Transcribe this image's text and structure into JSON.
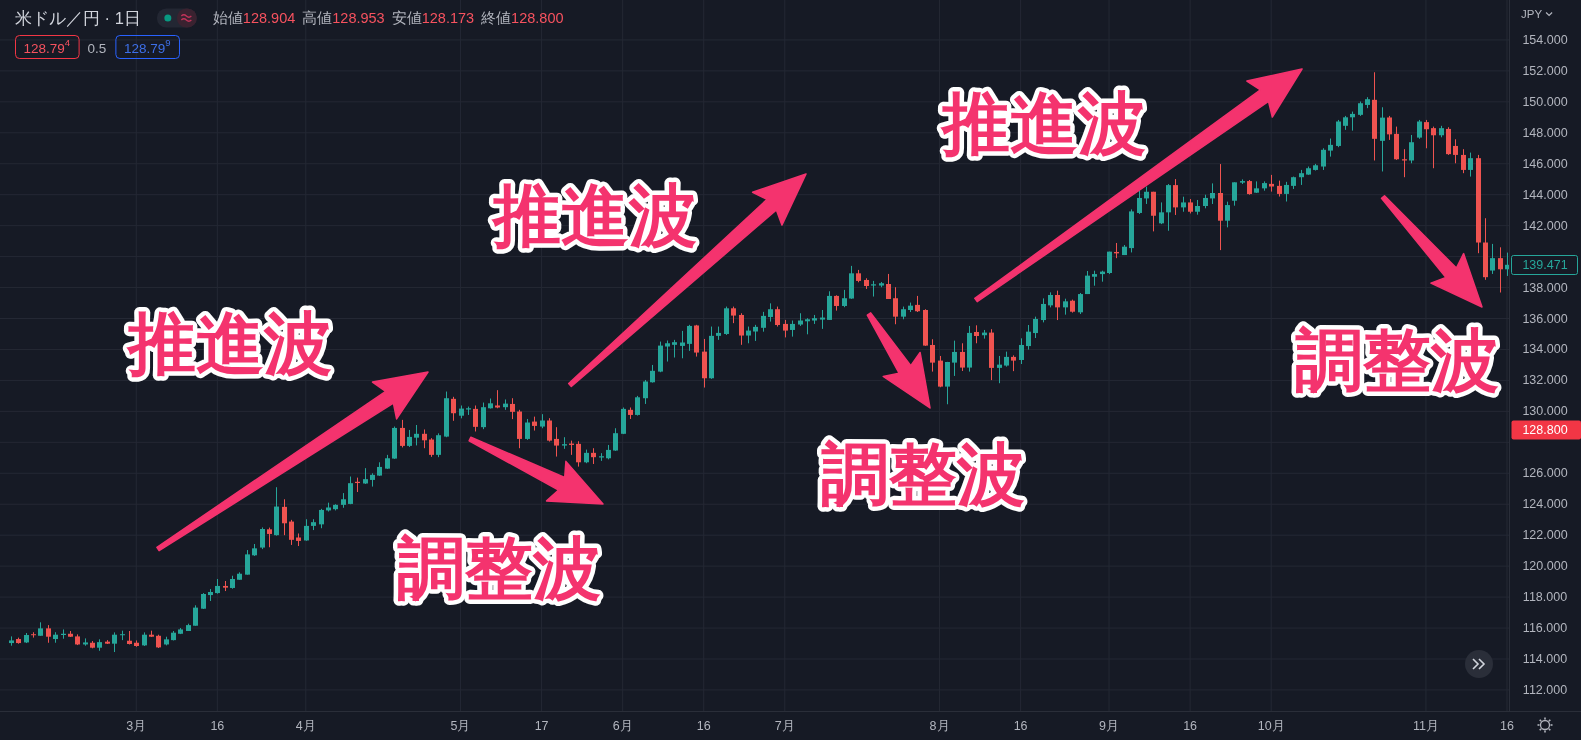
{
  "chart_data": {
    "type": "candlestick",
    "title": "米ドル／円 · 1日",
    "ylabel": "JPY",
    "categories": [
      null,
      null,
      null,
      null,
      null,
      null,
      null,
      null,
      null,
      null,
      null,
      null,
      null,
      null,
      null,
      null,
      null,
      "3月",
      null,
      null,
      null,
      null,
      null,
      null,
      null,
      null,
      null,
      null,
      "16",
      null,
      null,
      null,
      null,
      null,
      null,
      null,
      null,
      null,
      null,
      null,
      "4月",
      null,
      null,
      null,
      null,
      null,
      null,
      null,
      null,
      null,
      null,
      null,
      null,
      null,
      null,
      null,
      null,
      null,
      null,
      null,
      null,
      "5月",
      null,
      null,
      null,
      null,
      null,
      null,
      null,
      null,
      null,
      null,
      "17",
      null,
      null,
      null,
      null,
      null,
      null,
      null,
      null,
      null,
      null,
      "6月",
      null,
      null,
      null,
      null,
      null,
      null,
      null,
      null,
      null,
      null,
      "16",
      null,
      null,
      null,
      null,
      null,
      null,
      null,
      null,
      null,
      null,
      "7月",
      null,
      null,
      null,
      null,
      null,
      null,
      null,
      null,
      null,
      null,
      null,
      null,
      null,
      null,
      null,
      null,
      null,
      null,
      null,
      null,
      "8月",
      null,
      null,
      null,
      null,
      null,
      null,
      null,
      null,
      null,
      null,
      "16",
      null,
      null,
      null,
      null,
      null,
      null,
      null,
      null,
      null,
      null,
      null,
      "9月",
      null,
      null,
      null,
      null,
      null,
      null,
      null,
      null,
      null,
      null,
      "16",
      null,
      null,
      null,
      null,
      null,
      null,
      null,
      null,
      null,
      null,
      "10月",
      null,
      null,
      null,
      null,
      null,
      null,
      null,
      null,
      null,
      null,
      null,
      null,
      null,
      null,
      null,
      null,
      null,
      null,
      null,
      null,
      "11月",
      null,
      null,
      null,
      null,
      null,
      null,
      null,
      null,
      null,
      null,
      "16"
    ],
    "ohlc": [
      [
        115.03,
        115.46,
        114.86,
        115.2
      ],
      [
        115.29,
        115.38,
        114.99,
        115.03
      ],
      [
        115.07,
        115.68,
        115.03,
        115.55
      ],
      [
        115.6,
        115.73,
        115.38,
        115.55
      ],
      [
        115.5,
        116.37,
        115.5,
        115.98
      ],
      [
        115.98,
        116.19,
        115.05,
        115.44
      ],
      [
        115.29,
        115.73,
        115.05,
        115.57
      ],
      [
        115.55,
        115.91,
        115.31,
        115.63
      ],
      [
        115.63,
        115.81,
        115.42,
        115.44
      ],
      [
        115.46,
        115.59,
        114.9,
        114.94
      ],
      [
        114.94,
        115.33,
        114.86,
        115.07
      ],
      [
        115.05,
        115.16,
        114.69,
        114.73
      ],
      [
        114.73,
        115.27,
        114.53,
        115.09
      ],
      [
        115.12,
        115.22,
        114.97,
        114.99
      ],
      [
        114.99,
        115.72,
        114.45,
        115.57
      ],
      [
        115.55,
        115.83,
        115.22,
        115.6
      ],
      [
        115.18,
        115.81,
        114.94,
        114.97
      ],
      [
        115.05,
        115.2,
        114.79,
        114.84
      ],
      [
        114.88,
        115.72,
        114.84,
        115.57
      ],
      [
        115.57,
        115.83,
        115.42,
        115.44
      ],
      [
        115.5,
        115.57,
        114.71,
        114.75
      ],
      [
        114.94,
        115.44,
        114.88,
        115.27
      ],
      [
        115.22,
        115.81,
        115.2,
        115.7
      ],
      [
        115.63,
        116.0,
        115.61,
        115.91
      ],
      [
        115.81,
        116.28,
        115.81,
        116.19
      ],
      [
        116.15,
        117.47,
        116.15,
        117.32
      ],
      [
        117.25,
        118.26,
        117.23,
        118.2
      ],
      [
        118.13,
        118.52,
        117.75,
        118.33
      ],
      [
        118.26,
        119.17,
        118.22,
        118.72
      ],
      [
        118.72,
        119.04,
        118.39,
        118.61
      ],
      [
        118.59,
        119.38,
        118.54,
        119.17
      ],
      [
        119.12,
        119.6,
        119.12,
        119.51
      ],
      [
        119.45,
        121.04,
        119.45,
        120.76
      ],
      [
        120.7,
        121.43,
        120.66,
        121.15
      ],
      [
        121.2,
        122.5,
        121.1,
        122.4
      ],
      [
        122.38,
        122.49,
        121.22,
        122.08
      ],
      [
        122.0,
        125.1,
        121.97,
        123.85
      ],
      [
        123.83,
        124.32,
        122.0,
        122.77
      ],
      [
        122.88,
        122.99,
        121.37,
        121.7
      ],
      [
        121.85,
        122.11,
        121.3,
        121.63
      ],
      [
        121.66,
        123.03,
        121.64,
        122.6
      ],
      [
        122.6,
        123.03,
        122.33,
        122.84
      ],
      [
        122.7,
        123.7,
        122.45,
        123.63
      ],
      [
        123.6,
        124.1,
        123.53,
        123.79
      ],
      [
        123.68,
        124.0,
        123.6,
        123.96
      ],
      [
        123.96,
        124.72,
        123.77,
        124.32
      ],
      [
        124.02,
        125.79,
        124.0,
        125.36
      ],
      [
        125.45,
        125.72,
        124.79,
        125.37
      ],
      [
        125.34,
        126.33,
        125.31,
        125.62
      ],
      [
        125.57,
        126.0,
        125.14,
        125.9
      ],
      [
        125.85,
        126.71,
        125.83,
        126.41
      ],
      [
        126.3,
        127.19,
        126.28,
        126.97
      ],
      [
        126.95,
        129.02,
        126.93,
        128.93
      ],
      [
        128.93,
        129.45,
        127.67,
        127.77
      ],
      [
        127.77,
        128.8,
        127.7,
        128.35
      ],
      [
        128.3,
        129.12,
        127.8,
        128.55
      ],
      [
        128.55,
        128.83,
        127.62,
        128.13
      ],
      [
        128.18,
        128.27,
        127.06,
        127.19
      ],
      [
        127.19,
        128.58,
        127.04,
        128.46
      ],
      [
        128.37,
        131.28,
        128.33,
        130.85
      ],
      [
        130.81,
        130.94,
        129.39,
        129.88
      ],
      [
        129.72,
        130.38,
        129.55,
        130.18
      ],
      [
        130.12,
        130.31,
        129.77,
        130.2
      ],
      [
        130.16,
        130.38,
        128.7,
        129.0
      ],
      [
        128.98,
        130.57,
        128.85,
        130.27
      ],
      [
        130.2,
        130.83,
        130.18,
        130.52
      ],
      [
        130.38,
        131.37,
        130.2,
        130.25
      ],
      [
        130.27,
        130.77,
        130.1,
        130.5
      ],
      [
        130.48,
        130.85,
        129.5,
        129.97
      ],
      [
        129.99,
        130.1,
        127.62,
        128.22
      ],
      [
        128.22,
        129.51,
        128.16,
        129.28
      ],
      [
        129.34,
        129.66,
        128.76,
        129.06
      ],
      [
        129.02,
        129.82,
        128.91,
        129.41
      ],
      [
        129.41,
        129.56,
        128.05,
        128.11
      ],
      [
        128.22,
        128.98,
        127.08,
        127.79
      ],
      [
        127.79,
        128.33,
        127.58,
        127.88
      ],
      [
        127.92,
        128.11,
        127.19,
        127.83
      ],
      [
        127.9,
        128.07,
        126.43,
        126.71
      ],
      [
        126.71,
        127.53,
        126.65,
        127.32
      ],
      [
        127.32,
        127.62,
        126.6,
        127.04
      ],
      [
        127.02,
        127.3,
        126.8,
        127.1
      ],
      [
        126.97,
        127.83,
        126.9,
        127.51
      ],
      [
        127.47,
        128.91,
        127.45,
        128.59
      ],
      [
        128.55,
        130.25,
        128.53,
        130.16
      ],
      [
        130.1,
        130.25,
        129.51,
        129.77
      ],
      [
        129.77,
        131.0,
        129.73,
        130.91
      ],
      [
        130.85,
        132.03,
        130.48,
        131.93
      ],
      [
        131.88,
        133.0,
        131.86,
        132.62
      ],
      [
        132.57,
        134.51,
        132.53,
        134.25
      ],
      [
        134.19,
        134.58,
        133.22,
        134.4
      ],
      [
        134.3,
        134.62,
        133.48,
        134.47
      ],
      [
        134.23,
        135.2,
        133.43,
        134.45
      ],
      [
        134.36,
        135.59,
        133.91,
        135.52
      ],
      [
        135.55,
        135.59,
        133.54,
        133.8
      ],
      [
        133.86,
        134.68,
        131.54,
        132.14
      ],
      [
        132.14,
        135.48,
        132.1,
        134.88
      ],
      [
        134.88,
        135.48,
        134.62,
        135.07
      ],
      [
        135.0,
        136.77,
        134.94,
        136.66
      ],
      [
        136.66,
        136.77,
        135.7,
        136.19
      ],
      [
        136.23,
        136.34,
        134.3,
        134.9
      ],
      [
        134.9,
        135.48,
        134.4,
        135.22
      ],
      [
        135.16,
        135.59,
        134.55,
        135.46
      ],
      [
        135.4,
        136.43,
        135.15,
        136.17
      ],
      [
        136.1,
        136.98,
        135.8,
        136.6
      ],
      [
        136.6,
        136.77,
        135.48,
        135.58
      ],
      [
        135.65,
        135.91,
        134.78,
        135.22
      ],
      [
        135.26,
        135.87,
        134.83,
        135.65
      ],
      [
        135.61,
        136.34,
        135.52,
        135.87
      ],
      [
        135.82,
        136.02,
        134.98,
        135.95
      ],
      [
        135.87,
        136.23,
        135.65,
        136.02
      ],
      [
        135.93,
        136.55,
        135.33,
        136.06
      ],
      [
        135.91,
        137.76,
        135.91,
        137.46
      ],
      [
        137.46,
        137.5,
        136.51,
        136.81
      ],
      [
        136.81,
        137.85,
        136.73,
        137.31
      ],
      [
        137.29,
        139.4,
        137.27,
        138.92
      ],
      [
        138.92,
        139.14,
        138.34,
        138.43
      ],
      [
        138.49,
        138.6,
        137.91,
        138.1
      ],
      [
        138.13,
        138.43,
        137.42,
        138.21
      ],
      [
        138.13,
        138.36,
        138.02,
        138.28
      ],
      [
        138.23,
        138.88,
        137.26,
        137.26
      ],
      [
        137.31,
        138.02,
        135.63,
        136.12
      ],
      [
        136.12,
        136.77,
        135.95,
        136.6
      ],
      [
        136.55,
        137.03,
        136.42,
        136.83
      ],
      [
        136.88,
        137.46,
        136.42,
        136.47
      ],
      [
        136.55,
        136.6,
        134.23,
        134.25
      ],
      [
        134.29,
        134.66,
        132.57,
        133.15
      ],
      [
        133.28,
        133.58,
        131.56,
        131.6
      ],
      [
        131.6,
        133.2,
        130.46,
        133.19
      ],
      [
        133.15,
        134.57,
        132.29,
        133.84
      ],
      [
        133.84,
        134.4,
        132.61,
        132.83
      ],
      [
        132.83,
        135.52,
        132.57,
        135.07
      ],
      [
        135.13,
        135.56,
        134.4,
        134.87
      ],
      [
        134.92,
        135.26,
        134.7,
        135.09
      ],
      [
        135.09,
        135.31,
        132.02,
        132.81
      ],
      [
        132.81,
        133.58,
        131.82,
        133.02
      ],
      [
        132.96,
        133.86,
        132.89,
        133.52
      ],
      [
        133.52,
        133.62,
        132.6,
        133.28
      ],
      [
        133.32,
        134.72,
        133.06,
        134.29
      ],
      [
        134.22,
        135.58,
        133.99,
        135.15
      ],
      [
        135.06,
        136.12,
        134.74,
        135.97
      ],
      [
        135.9,
        137.3,
        135.75,
        136.94
      ],
      [
        136.85,
        137.69,
        136.72,
        137.52
      ],
      [
        137.52,
        137.8,
        135.9,
        136.72
      ],
      [
        136.72,
        137.28,
        136.25,
        137.11
      ],
      [
        137.15,
        137.22,
        136.38,
        136.44
      ],
      [
        136.4,
        137.65,
        136.29,
        137.58
      ],
      [
        137.58,
        139.07,
        137.58,
        138.77
      ],
      [
        138.7,
        139.09,
        138.12,
        138.87
      ],
      [
        138.87,
        139.09,
        138.38,
        139.03
      ],
      [
        138.94,
        140.32,
        138.87,
        140.32
      ],
      [
        140.3,
        140.88,
        139.9,
        140.21
      ],
      [
        140.1,
        140.75,
        140.1,
        140.64
      ],
      [
        140.55,
        143.05,
        140.27,
        142.92
      ],
      [
        142.82,
        144.26,
        142.75,
        143.79
      ],
      [
        143.76,
        144.52,
        143.4,
        144.19
      ],
      [
        144.19,
        144.19,
        141.63,
        142.64
      ],
      [
        142.15,
        143.5,
        142.1,
        142.86
      ],
      [
        142.86,
        144.69,
        141.67,
        144.62
      ],
      [
        144.62,
        145.01,
        142.69,
        143.18
      ],
      [
        143.18,
        143.87,
        142.9,
        143.5
      ],
      [
        143.5,
        143.72,
        142.79,
        142.9
      ],
      [
        142.9,
        143.66,
        142.71,
        143.27
      ],
      [
        143.27,
        144.0,
        143.12,
        143.79
      ],
      [
        143.76,
        144.73,
        143.4,
        144.11
      ],
      [
        144.11,
        145.98,
        140.42,
        142.32
      ],
      [
        142.32,
        143.55,
        141.89,
        143.33
      ],
      [
        143.61,
        144.8,
        143.29,
        144.8
      ],
      [
        144.78,
        144.99,
        144.69,
        144.88
      ],
      [
        144.88,
        144.95,
        144.0,
        144.04
      ],
      [
        144.13,
        144.86,
        144.11,
        144.41
      ],
      [
        144.41,
        144.86,
        144.26,
        144.75
      ],
      [
        144.7,
        145.28,
        144.2,
        144.53
      ],
      [
        144.57,
        144.91,
        143.88,
        144.05
      ],
      [
        144.05,
        144.83,
        143.56,
        144.63
      ],
      [
        144.57,
        145.17,
        144.37,
        145.13
      ],
      [
        145.13,
        145.6,
        144.63,
        145.39
      ],
      [
        145.3,
        145.82,
        145.28,
        145.71
      ],
      [
        145.6,
        145.99,
        145.56,
        145.9
      ],
      [
        145.82,
        147.0,
        145.6,
        146.9
      ],
      [
        146.85,
        147.63,
        146.46,
        147.22
      ],
      [
        147.15,
        148.83,
        147.07,
        148.73
      ],
      [
        148.45,
        149.09,
        148.19,
        149.0
      ],
      [
        149.0,
        149.37,
        148.14,
        149.22
      ],
      [
        149.16,
        150.02,
        149.09,
        149.91
      ],
      [
        149.8,
        150.3,
        149.59,
        150.17
      ],
      [
        150.13,
        151.91,
        146.21,
        147.61
      ],
      [
        147.48,
        149.65,
        145.5,
        148.98
      ],
      [
        148.99,
        149.09,
        147.54,
        147.9
      ],
      [
        147.93,
        148.4,
        146.25,
        146.29
      ],
      [
        146.29,
        146.94,
        145.13,
        146.21
      ],
      [
        146.21,
        147.86,
        146.03,
        147.39
      ],
      [
        147.69,
        148.83,
        147.61,
        148.73
      ],
      [
        148.69,
        148.83,
        147.0,
        148.23
      ],
      [
        148.3,
        148.4,
        145.71,
        147.84
      ],
      [
        147.84,
        148.45,
        147.71,
        148.3
      ],
      [
        148.25,
        148.36,
        146.57,
        146.62
      ],
      [
        147.15,
        147.58,
        146.03,
        146.57
      ],
      [
        146.57,
        146.94,
        145.39,
        145.6
      ],
      [
        145.6,
        146.72,
        145.17,
        146.36
      ],
      [
        146.36,
        146.57,
        140.22,
        140.91
      ],
      [
        140.91,
        142.48,
        138.5,
        138.67
      ],
      [
        139.1,
        140.82,
        138.88,
        139.9
      ],
      [
        139.9,
        140.6,
        137.68,
        139.18
      ],
      [
        139.18,
        140.26,
        138.75,
        139.47
      ]
    ],
    "ylim": [
      110.64,
      156.58
    ],
    "yticks": [
      {
        "value": 112,
        "label": "112.000"
      },
      {
        "value": 114,
        "label": "114.000"
      },
      {
        "value": 116,
        "label": "116.000"
      },
      {
        "value": 118,
        "label": "118.000"
      },
      {
        "value": 120,
        "label": "120.000"
      },
      {
        "value": 122,
        "label": "122.000"
      },
      {
        "value": 124,
        "label": "124.000"
      },
      {
        "value": 126,
        "label": "126.000"
      },
      {
        "value": 128,
        "label": null
      },
      {
        "value": 130,
        "label": "130.000"
      },
      {
        "value": 132,
        "label": "132.000"
      },
      {
        "value": 134,
        "label": "134.000"
      },
      {
        "value": 136,
        "label": "136.000"
      },
      {
        "value": 138,
        "label": "138.000"
      },
      {
        "value": 140,
        "label": null
      },
      {
        "value": 142,
        "label": "142.000"
      },
      {
        "value": 144,
        "label": "144.000"
      },
      {
        "value": 146,
        "label": "146.000"
      },
      {
        "value": 148,
        "label": "148.000"
      },
      {
        "value": 150,
        "label": "150.000"
      },
      {
        "value": 152,
        "label": "152.000"
      },
      {
        "value": 154,
        "label": "154.000"
      }
    ],
    "grid": true,
    "annotations": [
      "始値128.904",
      "高値128.953",
      "安値128.173",
      "終値128.800",
      "128.79$^{4}$",
      "0.5",
      "128.79$^{9}$",
      "推進波",
      "推進波",
      "推進波",
      "調整波",
      "調整波",
      "調整波",
      "128.800",
      "139.471"
    ]
  }
}
